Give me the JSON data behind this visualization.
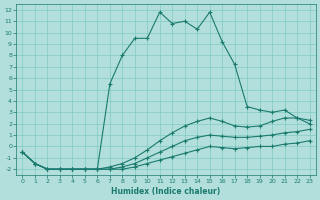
{
  "xlabel": "Humidex (Indice chaleur)",
  "bg_color": "#b2dfdb",
  "grid_color": "#80cbc4",
  "line_color": "#1a7a6e",
  "xlim": [
    -0.5,
    23.5
  ],
  "ylim": [
    -2.5,
    12.5
  ],
  "xticks": [
    0,
    1,
    2,
    3,
    4,
    5,
    6,
    7,
    8,
    9,
    10,
    11,
    12,
    13,
    14,
    15,
    16,
    17,
    18,
    19,
    20,
    21,
    22,
    23
  ],
  "yticks": [
    -2,
    -1,
    0,
    1,
    2,
    3,
    4,
    5,
    6,
    7,
    8,
    9,
    10,
    11,
    12
  ],
  "lines": [
    {
      "x": [
        0,
        1,
        2,
        3,
        4,
        5,
        6,
        7,
        8,
        9,
        10,
        11,
        12,
        13,
        14,
        15,
        16,
        17,
        18,
        19,
        20,
        21,
        22,
        23
      ],
      "y": [
        -0.5,
        -1.5,
        -2.0,
        -2.0,
        -2.0,
        -2.0,
        -2.0,
        -2.0,
        -2.0,
        -1.8,
        -1.5,
        -1.2,
        -0.9,
        -0.6,
        -0.3,
        0.0,
        -0.1,
        -0.2,
        -0.1,
        0.0,
        0.0,
        0.2,
        0.3,
        0.5
      ]
    },
    {
      "x": [
        0,
        1,
        2,
        3,
        4,
        5,
        6,
        7,
        8,
        9,
        10,
        11,
        12,
        13,
        14,
        15,
        16,
        17,
        18,
        19,
        20,
        21,
        22,
        23
      ],
      "y": [
        -0.5,
        -1.5,
        -2.0,
        -2.0,
        -2.0,
        -2.0,
        -2.0,
        -2.0,
        -1.8,
        -1.5,
        -1.0,
        -0.5,
        0.0,
        0.5,
        0.8,
        1.0,
        0.9,
        0.8,
        0.8,
        0.9,
        1.0,
        1.2,
        1.3,
        1.5
      ]
    },
    {
      "x": [
        0,
        1,
        2,
        3,
        4,
        5,
        6,
        7,
        8,
        9,
        10,
        11,
        12,
        13,
        14,
        15,
        16,
        17,
        18,
        19,
        20,
        21,
        22,
        23
      ],
      "y": [
        -0.5,
        -1.5,
        -2.0,
        -2.0,
        -2.0,
        -2.0,
        -2.0,
        -1.8,
        -1.5,
        -1.0,
        -0.3,
        0.5,
        1.2,
        1.8,
        2.2,
        2.5,
        2.2,
        1.8,
        1.7,
        1.8,
        2.2,
        2.5,
        2.5,
        2.3
      ]
    },
    {
      "x": [
        0,
        1,
        2,
        3,
        4,
        5,
        6,
        7,
        8,
        9,
        10,
        11,
        12,
        13,
        14,
        15,
        16,
        17,
        18,
        19,
        20,
        21,
        22,
        23
      ],
      "y": [
        -0.5,
        -1.5,
        -2.0,
        -2.0,
        -2.0,
        -2.0,
        -2.0,
        5.5,
        8.0,
        9.5,
        9.5,
        11.8,
        10.8,
        11.0,
        10.3,
        11.8,
        9.2,
        7.2,
        3.5,
        3.2,
        3.0,
        3.2,
        2.5,
        2.0
      ]
    }
  ]
}
